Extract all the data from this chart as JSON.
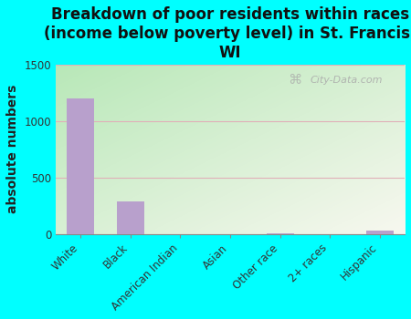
{
  "categories": [
    "White",
    "Black",
    "American Indian",
    "Asian",
    "Other race",
    "2+ races",
    "Hispanic"
  ],
  "values": [
    1200,
    290,
    0,
    0,
    5,
    0,
    30
  ],
  "bar_color": "#b8a0cc",
  "title": "Breakdown of poor residents within races\n(income below poverty level) in St. Francis,\nWI",
  "ylabel": "absolute numbers",
  "ylim": [
    0,
    1500
  ],
  "yticks": [
    0,
    500,
    1000,
    1500
  ],
  "bg_color_topleft": "#b8e8b8",
  "bg_color_bottomright": "#f8f8f0",
  "outer_bg": "#00ffff",
  "watermark": "City-Data.com",
  "title_fontsize": 12,
  "ylabel_fontsize": 10,
  "tick_fontsize": 8.5,
  "grid_color": "#e0b0b8"
}
